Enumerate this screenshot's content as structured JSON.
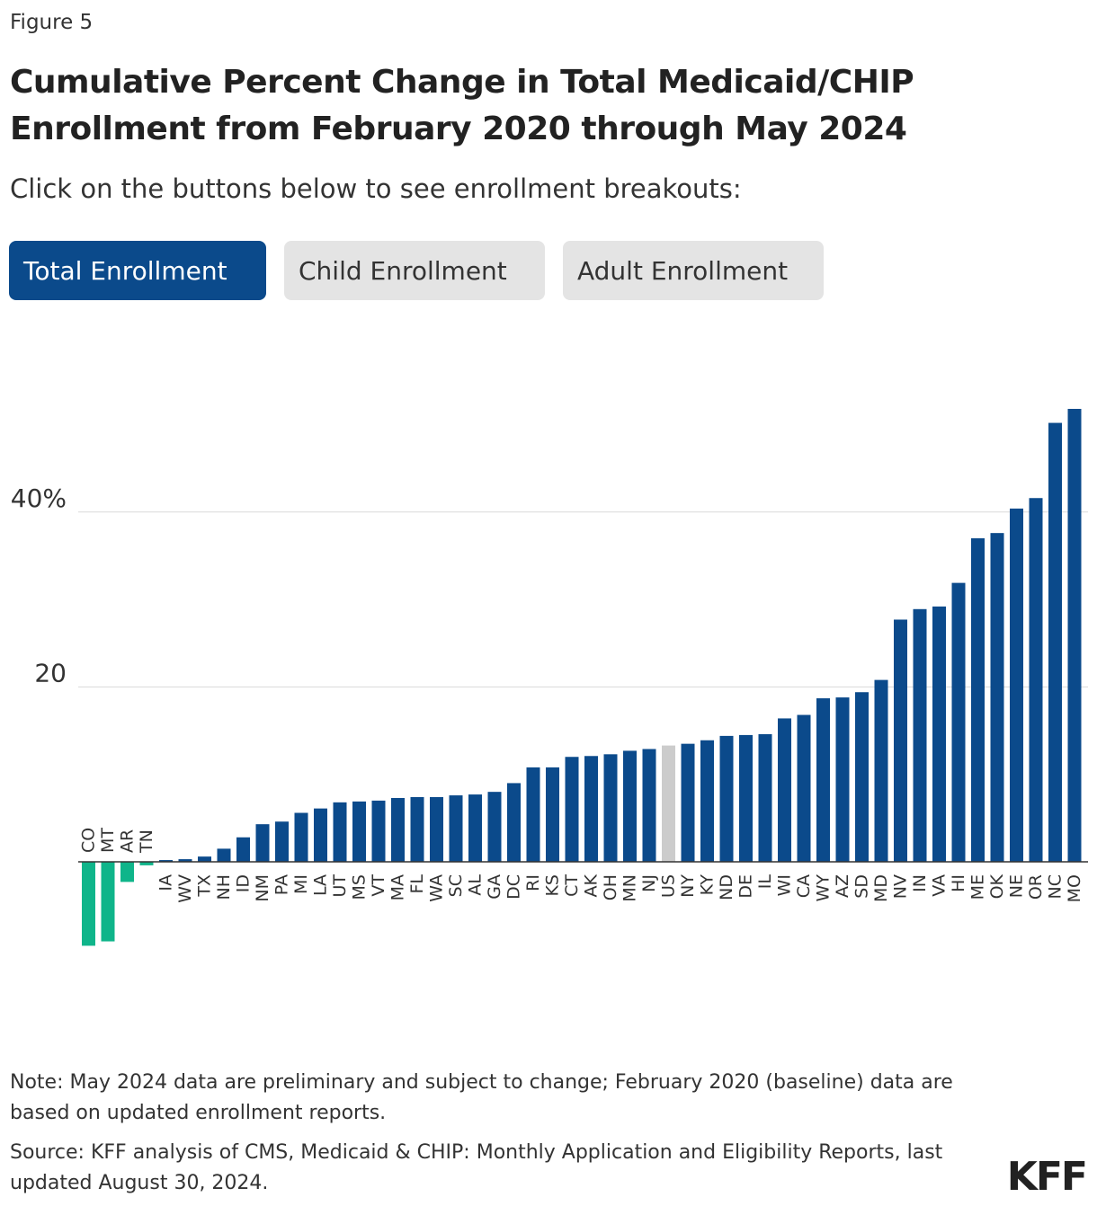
{
  "header": {
    "figure_label": "Figure 5",
    "title": "Cumulative Percent Change in Total Medicaid/CHIP Enrollment from February 2020 through May 2024",
    "subtitle": "Click on the buttons below to see enrollment breakouts:"
  },
  "tabs": [
    {
      "label": "Total Enrollment",
      "active": true
    },
    {
      "label": "Child Enrollment",
      "active": false
    },
    {
      "label": "Adult Enrollment",
      "active": false
    }
  ],
  "colors": {
    "positive": "#0b4a8b",
    "negative": "#0fb58a",
    "us": "#cccccc",
    "active_tab": "#0b4a8b",
    "inactive_tab": "#e4e4e4"
  },
  "chart_data": {
    "type": "bar",
    "title": "Cumulative Percent Change in Total Medicaid/CHIP Enrollment from February 2020 through May 2024",
    "xlabel": "",
    "ylabel": "",
    "ylim": [
      -13,
      52
    ],
    "yticks": [
      20,
      40
    ],
    "ytick_labels": [
      "20",
      "40%"
    ],
    "grid": "horizontal",
    "categories": [
      "CO",
      "MT",
      "AR",
      "TN",
      "IA",
      "WV",
      "TX",
      "NH",
      "ID",
      "NM",
      "PA",
      "MI",
      "LA",
      "UT",
      "MS",
      "VT",
      "MA",
      "FL",
      "WA",
      "SC",
      "AL",
      "GA",
      "DC",
      "RI",
      "KS",
      "CT",
      "AK",
      "OH",
      "MN",
      "NJ",
      "US",
      "NY",
      "KY",
      "ND",
      "DE",
      "IL",
      "WI",
      "CA",
      "WY",
      "AZ",
      "SD",
      "MD",
      "NV",
      "IN",
      "VA",
      "HI",
      "ME",
      "OK",
      "NE",
      "OR",
      "NC",
      "MO"
    ],
    "values": [
      -9.6,
      -9.1,
      -2.3,
      -0.4,
      0.2,
      0.3,
      0.6,
      1.5,
      2.8,
      4.3,
      4.6,
      5.6,
      6.1,
      6.8,
      6.9,
      7.0,
      7.3,
      7.4,
      7.4,
      7.6,
      7.7,
      8.0,
      9.0,
      10.8,
      10.8,
      12.0,
      12.1,
      12.3,
      12.7,
      12.9,
      13.3,
      13.5,
      13.9,
      14.4,
      14.5,
      14.6,
      16.4,
      16.8,
      18.7,
      18.8,
      19.4,
      20.8,
      27.7,
      28.9,
      29.2,
      31.9,
      37.0,
      37.6,
      40.4,
      41.6,
      50.2,
      51.8
    ],
    "highlight": "US"
  },
  "footer": {
    "note": "Note: May 2024 data are preliminary and subject to change; February 2020 (baseline) data are based on updated enrollment reports.",
    "source": "Source: KFF analysis of CMS, Medicaid & CHIP: Monthly Application and Eligibility Reports, last updated August 30, 2024.",
    "logo": "KFF"
  }
}
